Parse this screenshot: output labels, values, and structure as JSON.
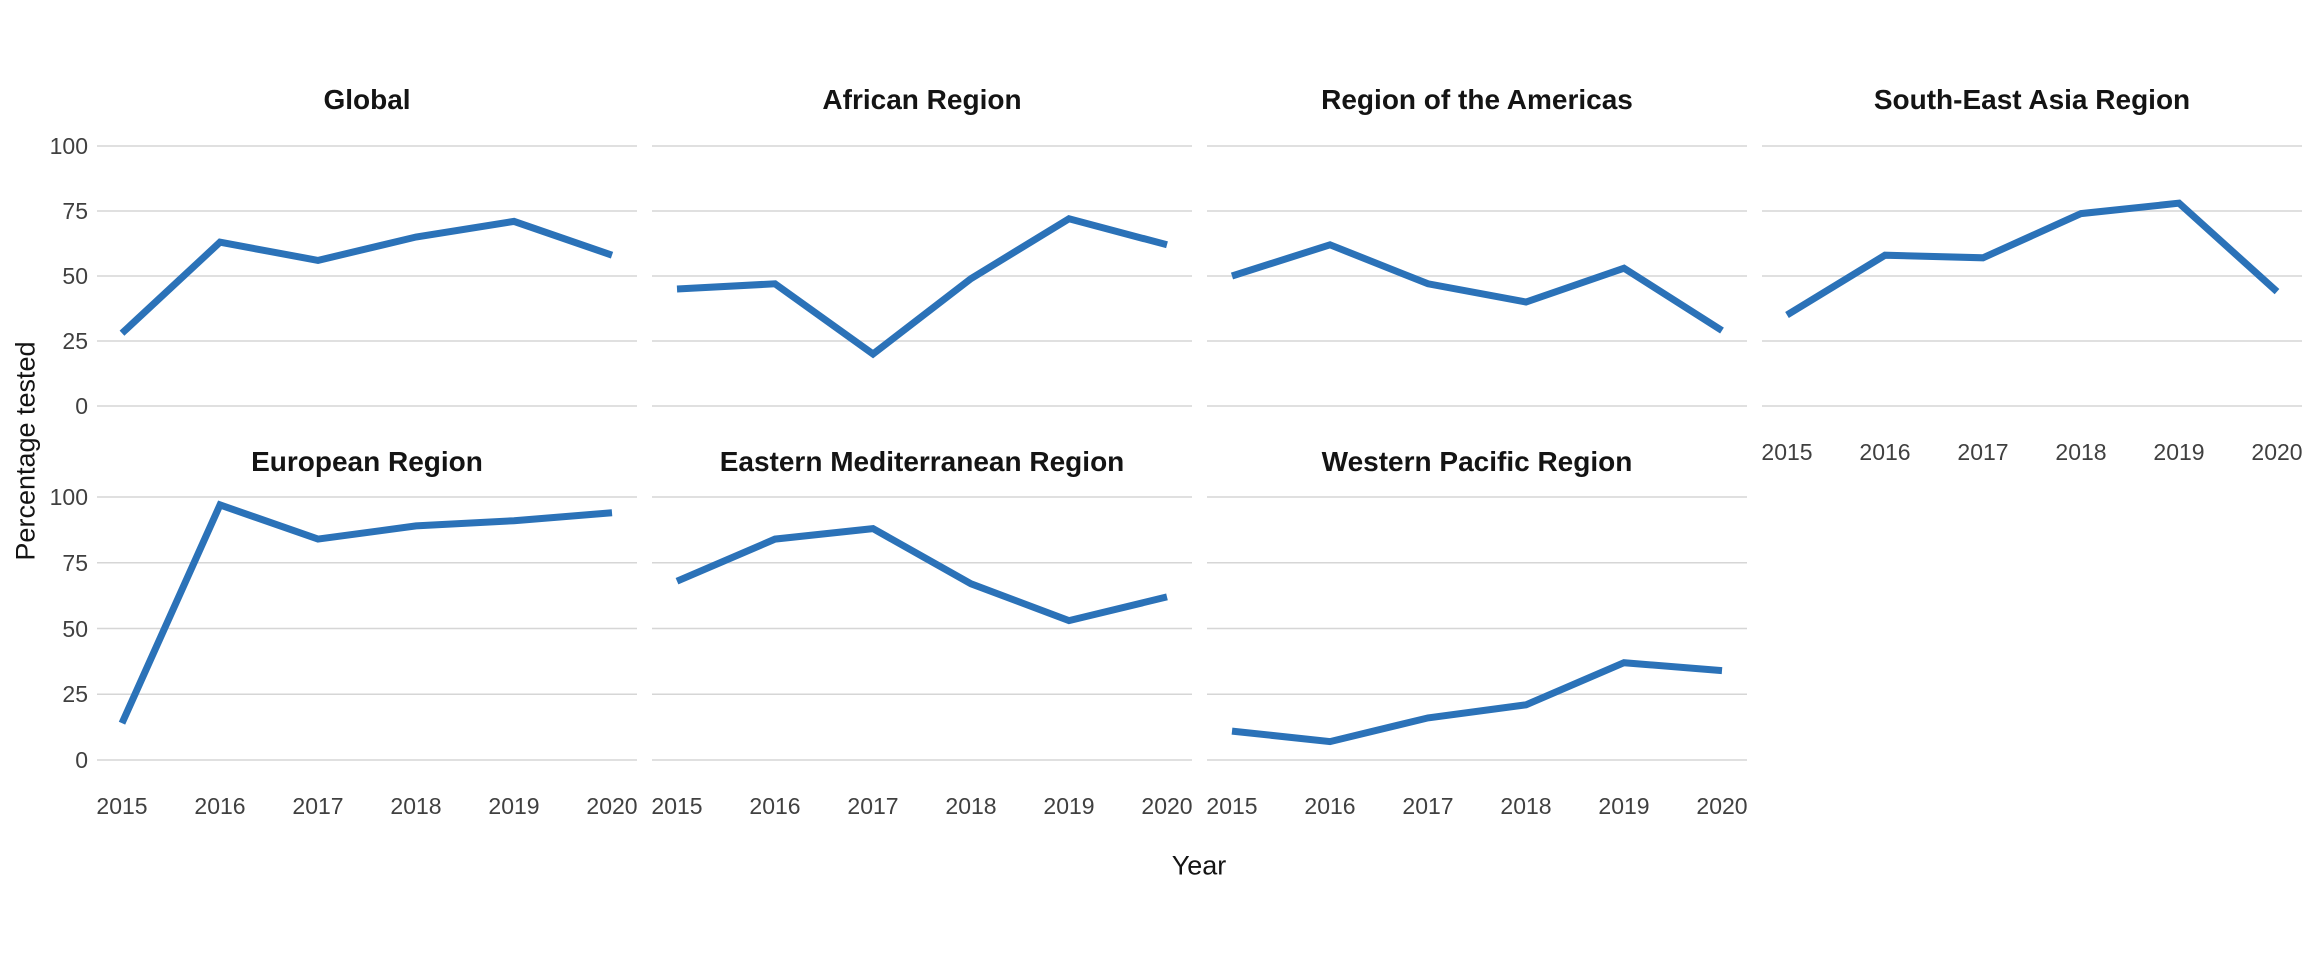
{
  "chart_data": {
    "type": "line",
    "title": "",
    "xlabel": "Year",
    "ylabel": "Percentage tested",
    "x": [
      2015,
      2016,
      2017,
      2018,
      2019,
      2020
    ],
    "ylim": [
      0,
      100
    ],
    "yticks": [
      100,
      75,
      50,
      25,
      0
    ],
    "grid": "horizontal-major-only",
    "legend": "none",
    "line_color": "#2b72b8",
    "grid_color": "#d6d6d6",
    "facets": [
      {
        "label": "Global",
        "values": [
          28,
          63,
          56,
          65,
          71,
          58
        ]
      },
      {
        "label": "African Region",
        "values": [
          45,
          47,
          20,
          49,
          72,
          62
        ]
      },
      {
        "label": "Region of the Americas",
        "values": [
          50,
          62,
          47,
          40,
          53,
          29
        ]
      },
      {
        "label": "South-East Asia Region",
        "values": [
          35,
          58,
          57,
          74,
          78,
          44
        ]
      },
      {
        "label": "European Region",
        "values": [
          14,
          97,
          84,
          89,
          91,
          94
        ]
      },
      {
        "label": "Eastern Mediterranean Region",
        "values": [
          68,
          84,
          88,
          67,
          53,
          62
        ]
      },
      {
        "label": "Western Pacific Region",
        "values": [
          11,
          7,
          16,
          21,
          37,
          34
        ]
      }
    ]
  }
}
